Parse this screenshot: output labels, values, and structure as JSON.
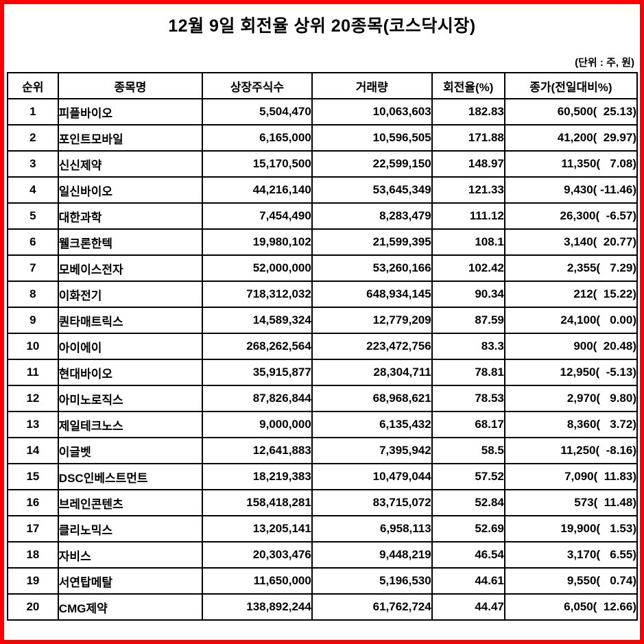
{
  "title": "12월 9일 회전율 상위 20종목(코스닥시장)",
  "unit_note": "(단위 : 주, 원)",
  "colors": {
    "page_border": "#ff0000",
    "table_border": "#000000",
    "text": "#000000",
    "background": "#ffffff"
  },
  "chart_data": {
    "type": "table",
    "title": "12월 9일 회전율 상위 20종목(코스닥시장)",
    "unit": "(단위 : 주, 원)",
    "columns": [
      "순위",
      "종목명",
      "상장주식수",
      "거래량",
      "회전율(%)",
      "종가(전일대비%)"
    ],
    "rows": [
      [
        "1",
        "피플바이오",
        "5,504,470",
        "10,063,603",
        "182.83",
        "60,500(  25.13)"
      ],
      [
        "2",
        "포인트모바일",
        "6,165,000",
        "10,596,505",
        "171.88",
        "41,200(  29.97)"
      ],
      [
        "3",
        "신신제약",
        "15,170,500",
        "22,599,150",
        "148.97",
        "11,350(   7.08)"
      ],
      [
        "4",
        "일신바이오",
        "44,216,140",
        "53,645,349",
        "121.33",
        "9,430( -11.46)"
      ],
      [
        "5",
        "대한과학",
        "7,454,490",
        "8,283,479",
        "111.12",
        "26,300(  -6.57)"
      ],
      [
        "6",
        "웰크론한텍",
        "19,980,102",
        "21,599,395",
        "108.1",
        "3,140(  20.77)"
      ],
      [
        "7",
        "모베이스전자",
        "52,000,000",
        "53,260,166",
        "102.42",
        "2,355(   7.29)"
      ],
      [
        "8",
        "이화전기",
        "718,312,032",
        "648,934,145",
        "90.34",
        "212(  15.22)"
      ],
      [
        "9",
        "퀀타매트릭스",
        "14,589,324",
        "12,779,209",
        "87.59",
        "24,100(   0.00)"
      ],
      [
        "10",
        "아이에이",
        "268,262,564",
        "223,472,756",
        "83.3",
        "900(  20.48)"
      ],
      [
        "11",
        "현대바이오",
        "35,915,877",
        "28,304,711",
        "78.81",
        "12,950(  -5.13)"
      ],
      [
        "12",
        "아미노로직스",
        "87,826,844",
        "68,968,621",
        "78.53",
        "2,970(   9.80)"
      ],
      [
        "13",
        "제일테크노스",
        "9,000,000",
        "6,135,432",
        "68.17",
        "8,360(   3.72)"
      ],
      [
        "14",
        "이글벳",
        "12,641,883",
        "7,395,942",
        "58.5",
        "11,250(  -8.16)"
      ],
      [
        "15",
        "DSC인베스트먼트",
        "18,219,383",
        "10,479,044",
        "57.52",
        "7,090(  11.83)"
      ],
      [
        "16",
        "브레인콘텐츠",
        "158,418,281",
        "83,715,072",
        "52.84",
        "573(  11.48)"
      ],
      [
        "17",
        "클리노믹스",
        "13,205,141",
        "6,958,113",
        "52.69",
        "19,900(   1.53)"
      ],
      [
        "18",
        "자비스",
        "20,303,476",
        "9,448,219",
        "46.54",
        "3,170(   6.55)"
      ],
      [
        "19",
        "서연탑메탈",
        "11,650,000",
        "5,196,530",
        "44.61",
        "9,550(   0.74)"
      ],
      [
        "20",
        "CMG제약",
        "138,892,244",
        "61,762,724",
        "44.47",
        "6,050(  12.66)"
      ]
    ]
  }
}
